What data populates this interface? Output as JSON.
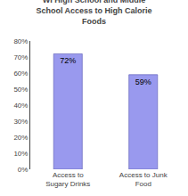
{
  "chart_data": {
    "type": "bar",
    "title": "WI High School and Middle\nSchool Access to High Calorie\nFoods",
    "categories": [
      "Access to\nSugary Drinks",
      "Access to Junk\nFood"
    ],
    "values": [
      72,
      59
    ],
    "value_labels": [
      "72%",
      "59%"
    ],
    "data_labels": true,
    "color": "#9999ee",
    "ylim": [
      0,
      80
    ],
    "yticks": [
      {
        "value": 0,
        "label": "0%"
      },
      {
        "value": 10,
        "label": "10%"
      },
      {
        "value": 20,
        "label": "20%"
      },
      {
        "value": 30,
        "label": "30%"
      },
      {
        "value": 40,
        "label": "40%"
      },
      {
        "value": 50,
        "label": "50%"
      },
      {
        "value": 60,
        "label": "60%"
      },
      {
        "value": 70,
        "label": "70%"
      },
      {
        "value": 80,
        "label": "80%"
      }
    ],
    "grid": false
  }
}
